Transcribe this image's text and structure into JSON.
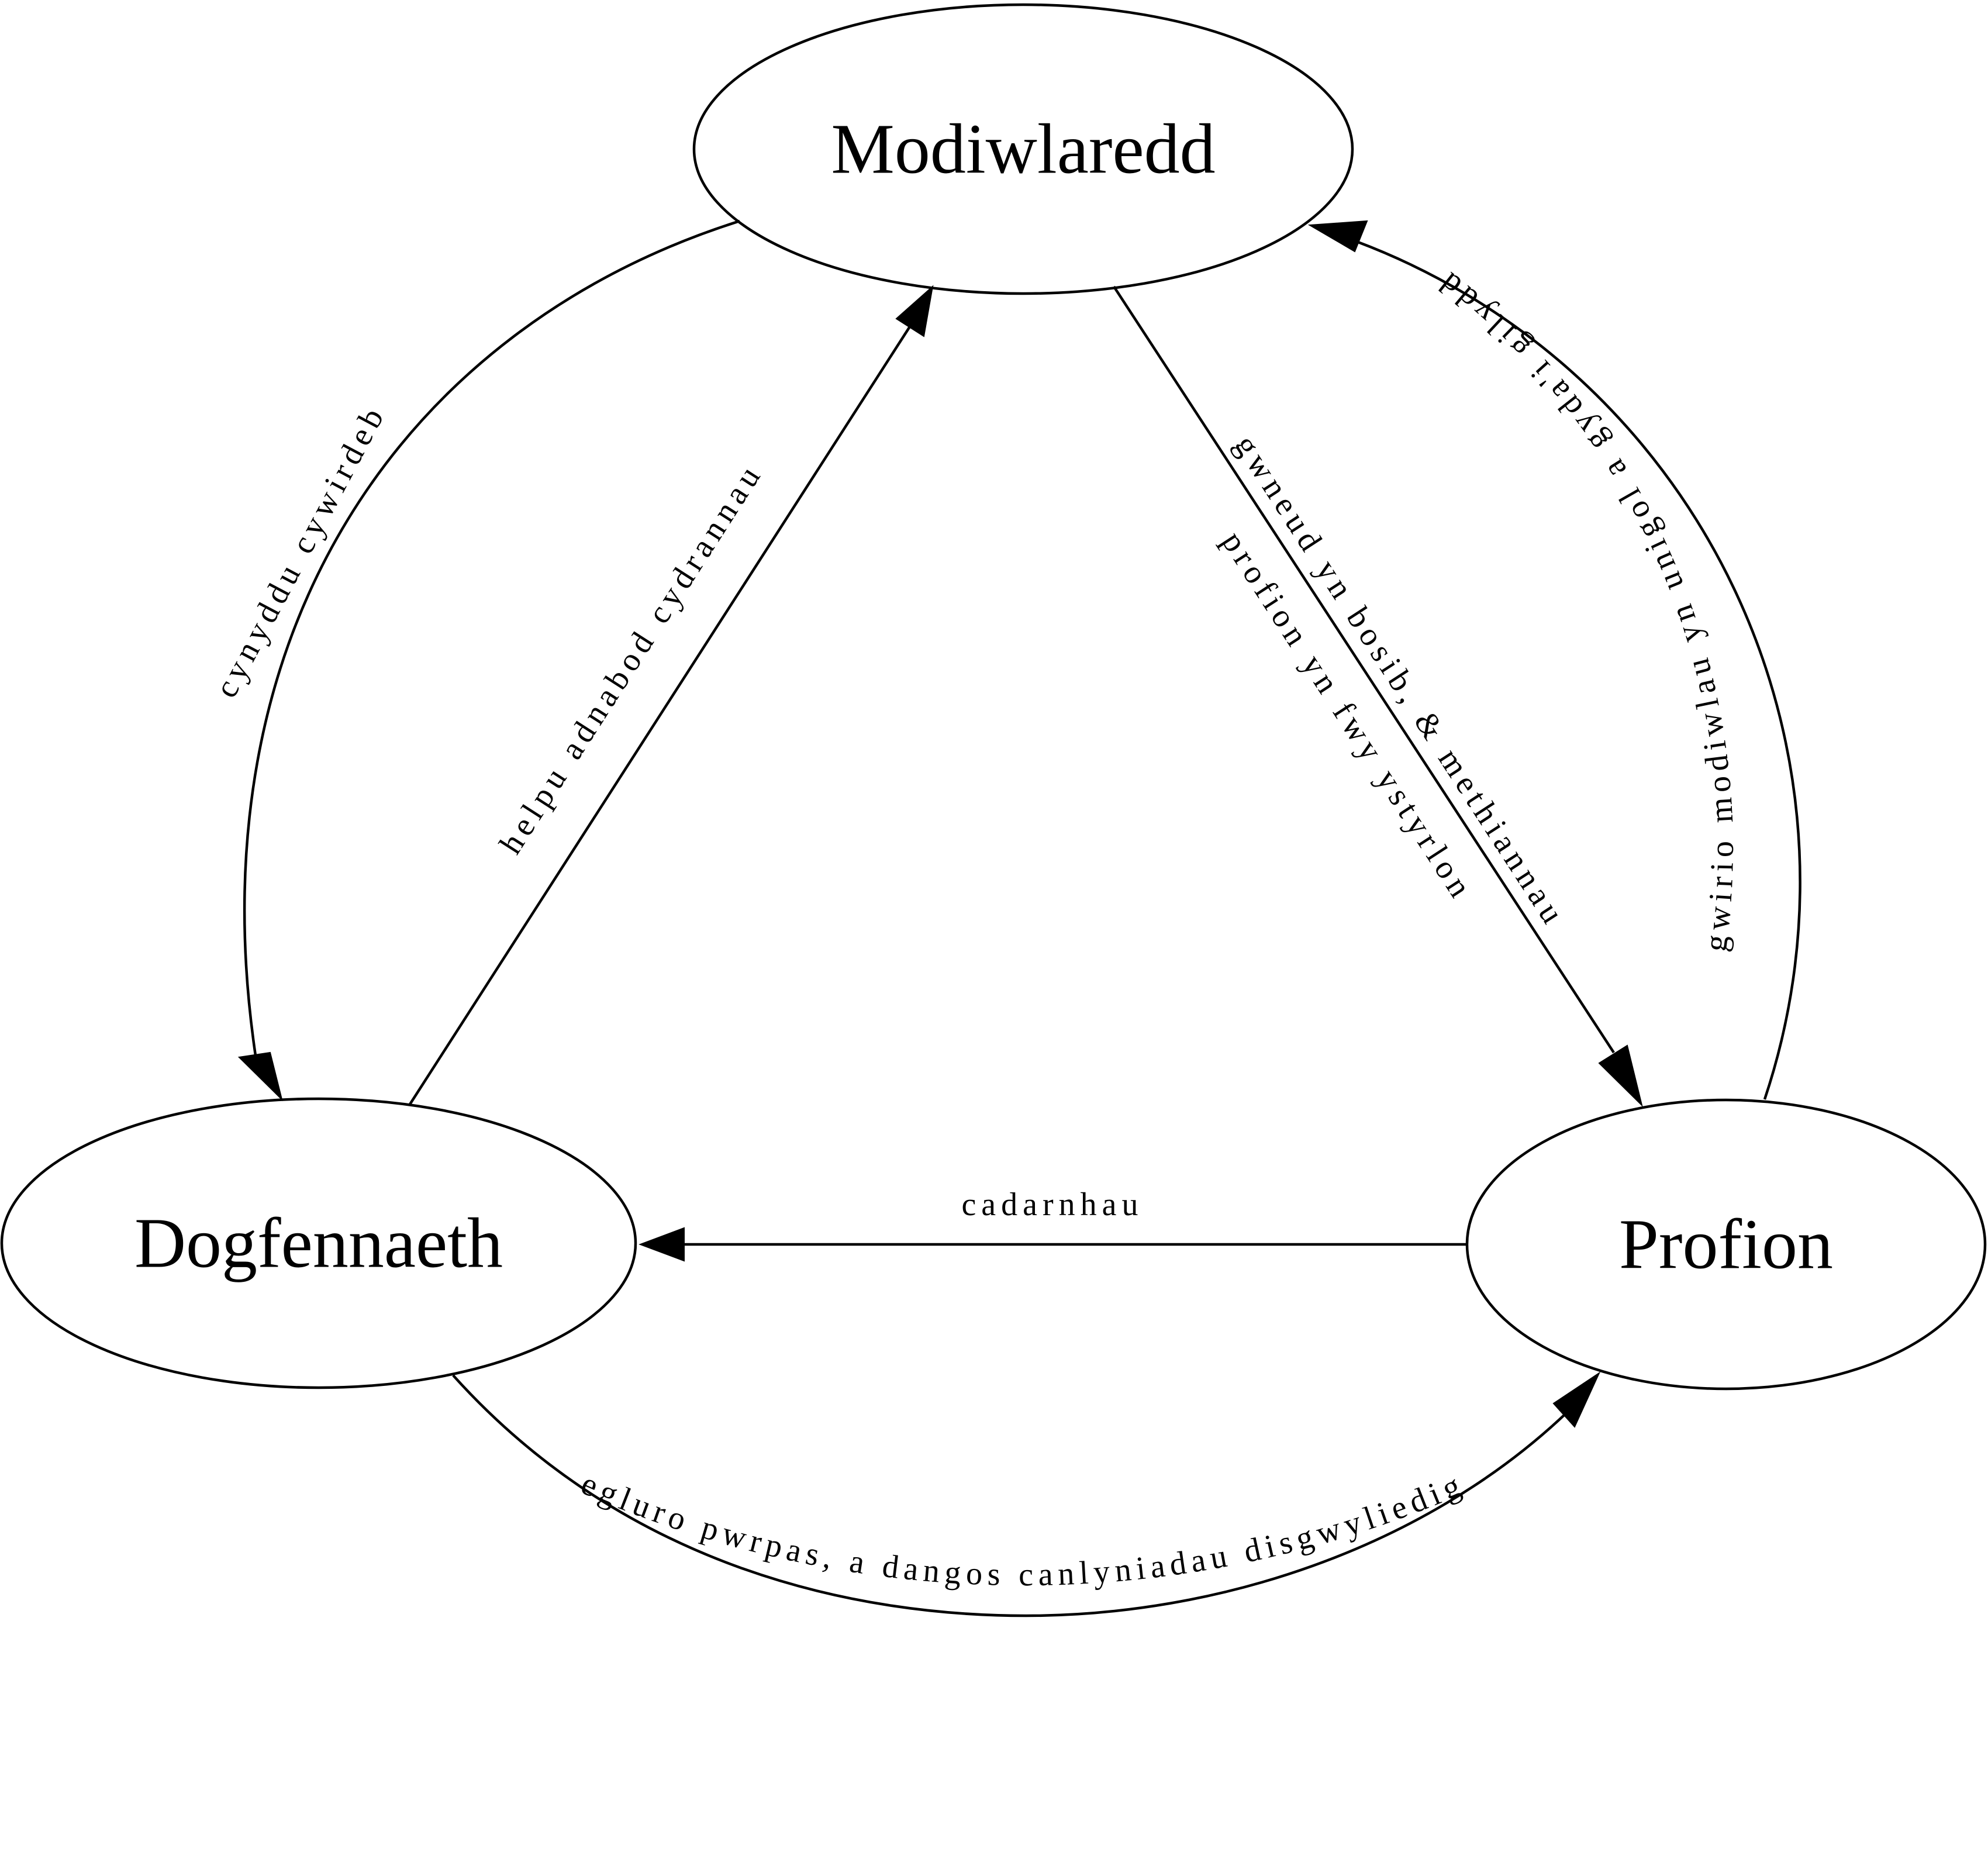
{
  "nodes": {
    "modularity": "Modiwlaredd",
    "documentation": "Dogfennaeth",
    "tests": "Profion"
  },
  "edges": [
    {
      "id": "modularity-to-documentation",
      "from": "Modiwlaredd",
      "to": "Dogfennaeth",
      "label": "cynyddu cywirdeb"
    },
    {
      "id": "documentation-to-modularity",
      "from": "Dogfennaeth",
      "to": "Modiwlaredd",
      "label": "helpu adnabod cydrannau"
    },
    {
      "id": "modularity-to-tests",
      "from": "Modiwlaredd",
      "to": "Profion",
      "label_lines": [
        "gwneud yn bosib, & methiannau",
        "profion yn fwy ystyrlon"
      ]
    },
    {
      "id": "tests-to-modularity",
      "from": "Profion",
      "to": "Modiwlaredd",
      "label": "gwirio modiwlau yn unigol a gyda'i gilydd"
    },
    {
      "id": "tests-to-documentation",
      "from": "Profion",
      "to": "Dogfennaeth",
      "label": "cadarnhau"
    },
    {
      "id": "documentation-to-tests",
      "from": "Dogfennaeth",
      "to": "Profion",
      "label": "egluro pwrpas, a dangos canlyniadau disgwyliedig"
    }
  ],
  "colors": {
    "stroke": "#000000",
    "background": "#ffffff"
  }
}
